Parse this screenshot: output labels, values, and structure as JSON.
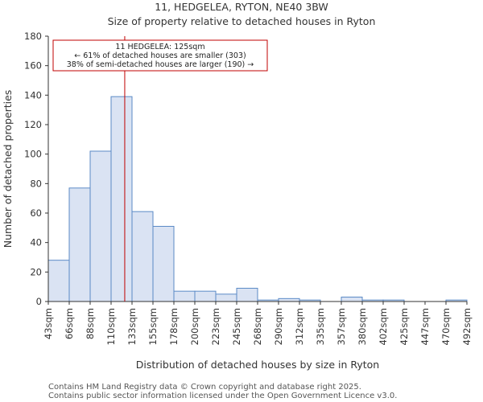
{
  "chart_data": {
    "type": "bar",
    "title_line1": "11, HEDGELEA, RYTON, NE40 3BW",
    "title_line2": "Size of property relative to detached houses in Ryton",
    "xlabel": "Distribution of detached houses by size in Ryton",
    "ylabel": "Number of detached properties",
    "bin_edges": [
      43,
      66,
      88,
      110,
      133,
      155,
      178,
      200,
      223,
      245,
      268,
      290,
      312,
      335,
      357,
      380,
      402,
      425,
      447,
      470,
      492
    ],
    "x_tick_labels": [
      "43sqm",
      "66sqm",
      "88sqm",
      "110sqm",
      "133sqm",
      "155sqm",
      "178sqm",
      "200sqm",
      "223sqm",
      "245sqm",
      "268sqm",
      "290sqm",
      "312sqm",
      "335sqm",
      "357sqm",
      "380sqm",
      "402sqm",
      "425sqm",
      "447sqm",
      "470sqm",
      "492sqm"
    ],
    "values": [
      28,
      77,
      102,
      139,
      61,
      51,
      7,
      7,
      5,
      9,
      1,
      2,
      1,
      0,
      3,
      1,
      1,
      0,
      0,
      1
    ],
    "ylim": [
      0,
      180
    ],
    "y_ticks": [
      0,
      20,
      40,
      60,
      80,
      100,
      120,
      140,
      160,
      180
    ],
    "property_size": 125,
    "annotation": {
      "line1": "11 HEDGELEA: 125sqm",
      "line2": "← 61% of detached houses are smaller (303)",
      "line3": "38% of semi-detached houses are larger (190) →"
    },
    "colors": {
      "bar_fill": "#dae3f3",
      "bar_stroke": "#5b8ac6",
      "marker": "#c00000",
      "axis": "#333333"
    }
  },
  "footer": {
    "line1": "Contains HM Land Registry data © Crown copyright and database right 2025.",
    "line2": "Contains public sector information licensed under the Open Government Licence v3.0."
  }
}
